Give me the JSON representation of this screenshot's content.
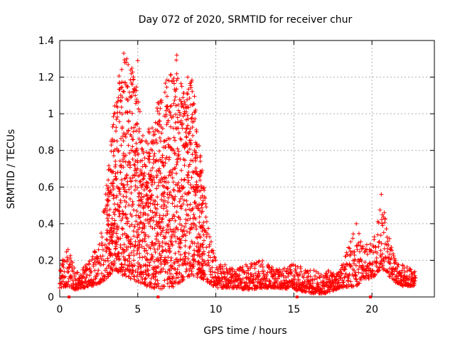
{
  "chart_data": {
    "type": "scatter",
    "title": "Day 072 of 2020, SRMTID for receiver chur",
    "xlabel": "GPS time / hours",
    "ylabel": "SRMTID / TECUs",
    "xlim": [
      0,
      24
    ],
    "ylim": [
      0,
      1.4
    ],
    "xticks": [
      "0",
      "5",
      "10",
      "15",
      "20"
    ],
    "yticks": [
      "0",
      "0.2",
      "0.4",
      "0.6",
      "0.8",
      "1",
      "1.2",
      "1.4"
    ],
    "grid": true,
    "marker": "+",
    "color": "#ff0000",
    "series": [
      {
        "name": "SRMTID",
        "envelope": [
          {
            "x": 0.0,
            "low": 0.05,
            "high": 0.15
          },
          {
            "x": 0.5,
            "low": 0.06,
            "high": 0.28
          },
          {
            "x": 1.0,
            "low": 0.04,
            "high": 0.14
          },
          {
            "x": 1.5,
            "low": 0.05,
            "high": 0.16
          },
          {
            "x": 2.0,
            "low": 0.06,
            "high": 0.22
          },
          {
            "x": 2.5,
            "low": 0.07,
            "high": 0.3
          },
          {
            "x": 3.0,
            "low": 0.1,
            "high": 0.6
          },
          {
            "x": 3.5,
            "low": 0.15,
            "high": 1.05
          },
          {
            "x": 4.0,
            "low": 0.12,
            "high": 1.33
          },
          {
            "x": 4.5,
            "low": 0.1,
            "high": 1.28
          },
          {
            "x": 5.0,
            "low": 0.08,
            "high": 1.15
          },
          {
            "x": 5.5,
            "low": 0.06,
            "high": 0.9
          },
          {
            "x": 6.0,
            "low": 0.05,
            "high": 0.95
          },
          {
            "x": 6.5,
            "low": 0.04,
            "high": 1.15
          },
          {
            "x": 7.0,
            "low": 0.05,
            "high": 1.2
          },
          {
            "x": 7.5,
            "low": 0.06,
            "high": 1.32
          },
          {
            "x": 8.0,
            "low": 0.1,
            "high": 1.1
          },
          {
            "x": 8.5,
            "low": 0.12,
            "high": 1.2
          },
          {
            "x": 9.0,
            "low": 0.1,
            "high": 0.8
          },
          {
            "x": 9.5,
            "low": 0.08,
            "high": 0.4
          },
          {
            "x": 10.0,
            "low": 0.05,
            "high": 0.2
          },
          {
            "x": 11.0,
            "low": 0.05,
            "high": 0.16
          },
          {
            "x": 12.0,
            "low": 0.04,
            "high": 0.18
          },
          {
            "x": 13.0,
            "low": 0.05,
            "high": 0.2
          },
          {
            "x": 14.0,
            "low": 0.05,
            "high": 0.15
          },
          {
            "x": 15.0,
            "low": 0.04,
            "high": 0.18
          },
          {
            "x": 16.0,
            "low": 0.02,
            "high": 0.15
          },
          {
            "x": 17.0,
            "low": 0.02,
            "high": 0.14
          },
          {
            "x": 18.0,
            "low": 0.05,
            "high": 0.16
          },
          {
            "x": 19.0,
            "low": 0.06,
            "high": 0.4
          },
          {
            "x": 19.5,
            "low": 0.1,
            "high": 0.28
          },
          {
            "x": 20.0,
            "low": 0.1,
            "high": 0.3
          },
          {
            "x": 20.6,
            "low": 0.15,
            "high": 0.56
          },
          {
            "x": 21.0,
            "low": 0.12,
            "high": 0.36
          },
          {
            "x": 21.5,
            "low": 0.08,
            "high": 0.2
          },
          {
            "x": 22.0,
            "low": 0.06,
            "high": 0.18
          },
          {
            "x": 22.8,
            "low": 0.06,
            "high": 0.14
          }
        ],
        "notable_points": [
          {
            "x": 4.1,
            "y": 1.33
          },
          {
            "x": 4.3,
            "y": 1.3
          },
          {
            "x": 5.0,
            "y": 1.29
          },
          {
            "x": 7.5,
            "y": 1.32
          },
          {
            "x": 8.2,
            "y": 1.2
          },
          {
            "x": 20.6,
            "y": 0.56
          },
          {
            "x": 19.0,
            "y": 0.4
          }
        ]
      }
    ],
    "bottom_markers_x": [
      0.6,
      6.3,
      15.2,
      19.9
    ]
  }
}
